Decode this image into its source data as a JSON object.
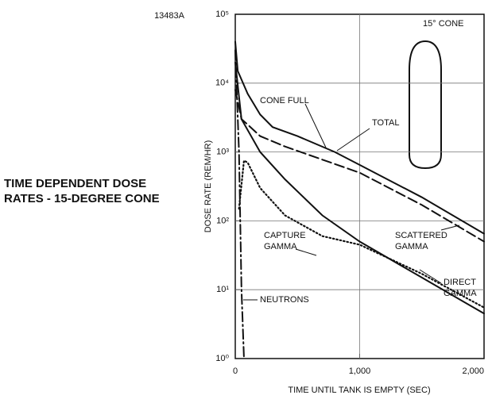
{
  "chart_data": {
    "type": "line",
    "figure_id": "13483A",
    "title": "TIME DEPENDENT DOSE RATES - 15-DEGREE CONE",
    "x_label": "TIME UNTIL TANK IS EMPTY (SEC)",
    "y_label": "DOSE RATE (REM/HR)",
    "annotations": [
      "CONE FULL",
      "15° CONE"
    ],
    "log_scale_y": true,
    "grid": true,
    "xlim": [
      0,
      2000
    ],
    "xticks": [
      0,
      {
        "value": 1000,
        "label": "1,000"
      },
      {
        "value": 2000,
        "label": "2,000"
      }
    ],
    "ylim": [
      1,
      100000
    ],
    "yticks": [
      {
        "value": 1,
        "label": "10⁰"
      },
      {
        "value": 10,
        "label": "10¹"
      },
      {
        "value": 100,
        "label": "10²"
      },
      {
        "value": 1000,
        "label": "10³"
      },
      {
        "value": 10000,
        "label": "10⁴"
      },
      {
        "value": 100000,
        "label": "10⁵"
      }
    ],
    "series": [
      {
        "name": "TOTAL",
        "color": "#111111",
        "dash": "solid",
        "x": [
          0,
          20,
          100,
          200,
          300,
          500,
          800,
          1000,
          1500,
          2000
        ],
        "values": [
          40000,
          15000,
          7000,
          3500,
          2300,
          1700,
          1000,
          650,
          220,
          65
        ]
      },
      {
        "name": "SCATTERED GAMMA",
        "color": "#111111",
        "dash": "dashed",
        "x": [
          0,
          50,
          100,
          200,
          400,
          1000,
          1500,
          2000
        ],
        "values": [
          8000,
          3000,
          2500,
          1700,
          1200,
          500,
          170,
          50
        ]
      },
      {
        "name": "DIRECT GAMMA",
        "color": "#111111",
        "dash": "solid",
        "x": [
          0,
          50,
          200,
          400,
          700,
          1000,
          1500,
          2000
        ],
        "values": [
          20000,
          3000,
          1000,
          400,
          120,
          50,
          15,
          4.5
        ]
      },
      {
        "name": "CAPTURE GAMMA",
        "color": "#111111",
        "dash": "dotted",
        "x": [
          30,
          70,
          100,
          200,
          400,
          700,
          1000,
          1500,
          2000
        ],
        "values": [
          150,
          750,
          700,
          300,
          120,
          60,
          45,
          17,
          5.5
        ]
      },
      {
        "name": "NEUTRONS",
        "color": "#111111",
        "dash": "dashdot",
        "x": [
          0,
          30,
          50,
          70
        ],
        "values": [
          30000,
          1000,
          10,
          1
        ]
      }
    ]
  }
}
